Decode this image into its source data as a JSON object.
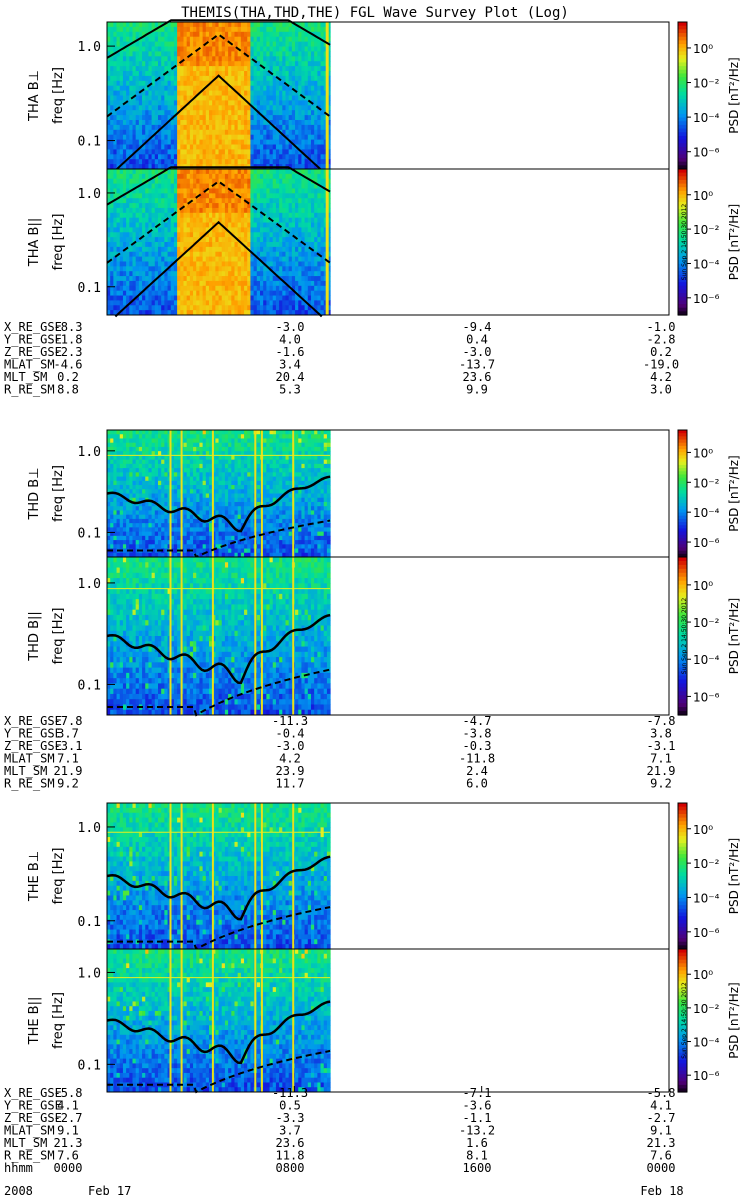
{
  "title": "THEMIS(THA,THD,THE) FGL Wave Survey Plot (Log)",
  "colorbar": {
    "label": "PSD [nT²/Hz]",
    "ticks": [
      "10⁰",
      "10⁻²",
      "10⁻⁴",
      "10⁻⁶"
    ],
    "tick_exponents": [
      0,
      -2,
      -4,
      -6
    ],
    "range_log": [
      -7,
      1.5
    ],
    "stamp": "Sun Sep  2 14:50:30 2012"
  },
  "yaxis": {
    "label": "freq [Hz]",
    "ticks": [
      "1.0",
      "0.1"
    ],
    "tick_values": [
      1.0,
      0.1
    ],
    "range": [
      0.05,
      1.8
    ],
    "scale": "log"
  },
  "panels": [
    {
      "probe": "THA",
      "label": "THA B⊥",
      "data_fraction": 0.397
    },
    {
      "probe": "THA",
      "label": "THA B||",
      "data_fraction": 0.397
    },
    {
      "probe": "THD",
      "label": "THD B⊥",
      "data_fraction": 0.397
    },
    {
      "probe": "THD",
      "label": "THD B||",
      "data_fraction": 0.397
    },
    {
      "probe": "THE",
      "label": "THE B⊥",
      "data_fraction": 0.397
    },
    {
      "probe": "THE",
      "label": "THE B||",
      "data_fraction": 0.397
    }
  ],
  "ephemeris": [
    {
      "probe": "THA",
      "rows": [
        {
          "name": "X_RE_GSE",
          "values": [
            "-8.3",
            "-3.0",
            "-9.4",
            "-1.0"
          ]
        },
        {
          "name": "Y_RE_GSE",
          "values": [
            "-1.8",
            "4.0",
            "0.4",
            "-2.8"
          ]
        },
        {
          "name": "Z_RE_GSE",
          "values": [
            "-2.3",
            "-1.6",
            "-3.0",
            "0.2"
          ]
        },
        {
          "name": "MLAT_SM",
          "values": [
            "-4.6",
            "3.4",
            "-13.7",
            "-19.0"
          ]
        },
        {
          "name": "MLT_SM",
          "values": [
            "0.2",
            "20.4",
            "23.6",
            "4.2"
          ]
        },
        {
          "name": "R_RE_SM",
          "values": [
            "8.8",
            "5.3",
            "9.9",
            "3.0"
          ]
        }
      ]
    },
    {
      "probe": "THD",
      "rows": [
        {
          "name": "X_RE_GSE",
          "values": [
            "-7.8",
            "-11.3",
            "-4.7",
            "-7.8"
          ]
        },
        {
          "name": "Y_RE_GSE",
          "values": [
            "3.7",
            "-0.4",
            "-3.8",
            "3.8"
          ]
        },
        {
          "name": "Z_RE_GSE",
          "values": [
            "-3.1",
            "-3.0",
            "-0.3",
            "-3.1"
          ]
        },
        {
          "name": "MLAT_SM",
          "values": [
            "7.1",
            "4.2",
            "-11.8",
            "7.1"
          ]
        },
        {
          "name": "MLT_SM",
          "values": [
            "21.9",
            "23.9",
            "2.4",
            "21.9"
          ]
        },
        {
          "name": "R_RE_SM",
          "values": [
            "9.2",
            "11.7",
            "6.0",
            "9.2"
          ]
        }
      ]
    },
    {
      "probe": "THE",
      "rows": [
        {
          "name": "X_RE_GSE",
          "values": [
            "-5.8",
            "-11.3",
            "-7.1",
            "-5.8"
          ]
        },
        {
          "name": "Y_RE_GSE",
          "values": [
            "4.1",
            "0.5",
            "-3.6",
            "4.1"
          ]
        },
        {
          "name": "Z_RE_GSE",
          "values": [
            "-2.7",
            "-3.3",
            "-1.1",
            "-2.7"
          ]
        },
        {
          "name": "MLAT_SM",
          "values": [
            "9.1",
            "3.7",
            "-13.2",
            "9.1"
          ]
        },
        {
          "name": "MLT_SM",
          "values": [
            "21.3",
            "23.6",
            "1.6",
            "21.3"
          ]
        },
        {
          "name": "R_RE_SM",
          "values": [
            "7.6",
            "11.8",
            "8.1",
            "7.6"
          ]
        },
        {
          "name": "hhmm",
          "values": [
            "0000",
            "0800",
            "1600",
            "0000"
          ]
        }
      ]
    }
  ],
  "date_row": {
    "year": "2008",
    "start": "Feb 17",
    "end": "Feb 18"
  },
  "chart_data": {
    "type": "heatmap",
    "title": "THEMIS(THA,THD,THE) FGL Wave Survey Plot (Log)",
    "xlabel": "hhmm",
    "x_ticks": [
      "0000",
      "0800",
      "1600",
      "0000"
    ],
    "ylabel": "freq [Hz]",
    "yscale": "log",
    "ylim": [
      0.05,
      1.8
    ],
    "z_label": "PSD [nT²/Hz]",
    "z_scale": "log",
    "zlim_log": [
      -7,
      1.5
    ],
    "series": [
      {
        "name": "THA B⊥"
      },
      {
        "name": "THA B||"
      },
      {
        "name": "THD B⊥"
      },
      {
        "name": "THD B||"
      },
      {
        "name": "THE B⊥"
      },
      {
        "name": "THE B||"
      }
    ]
  }
}
